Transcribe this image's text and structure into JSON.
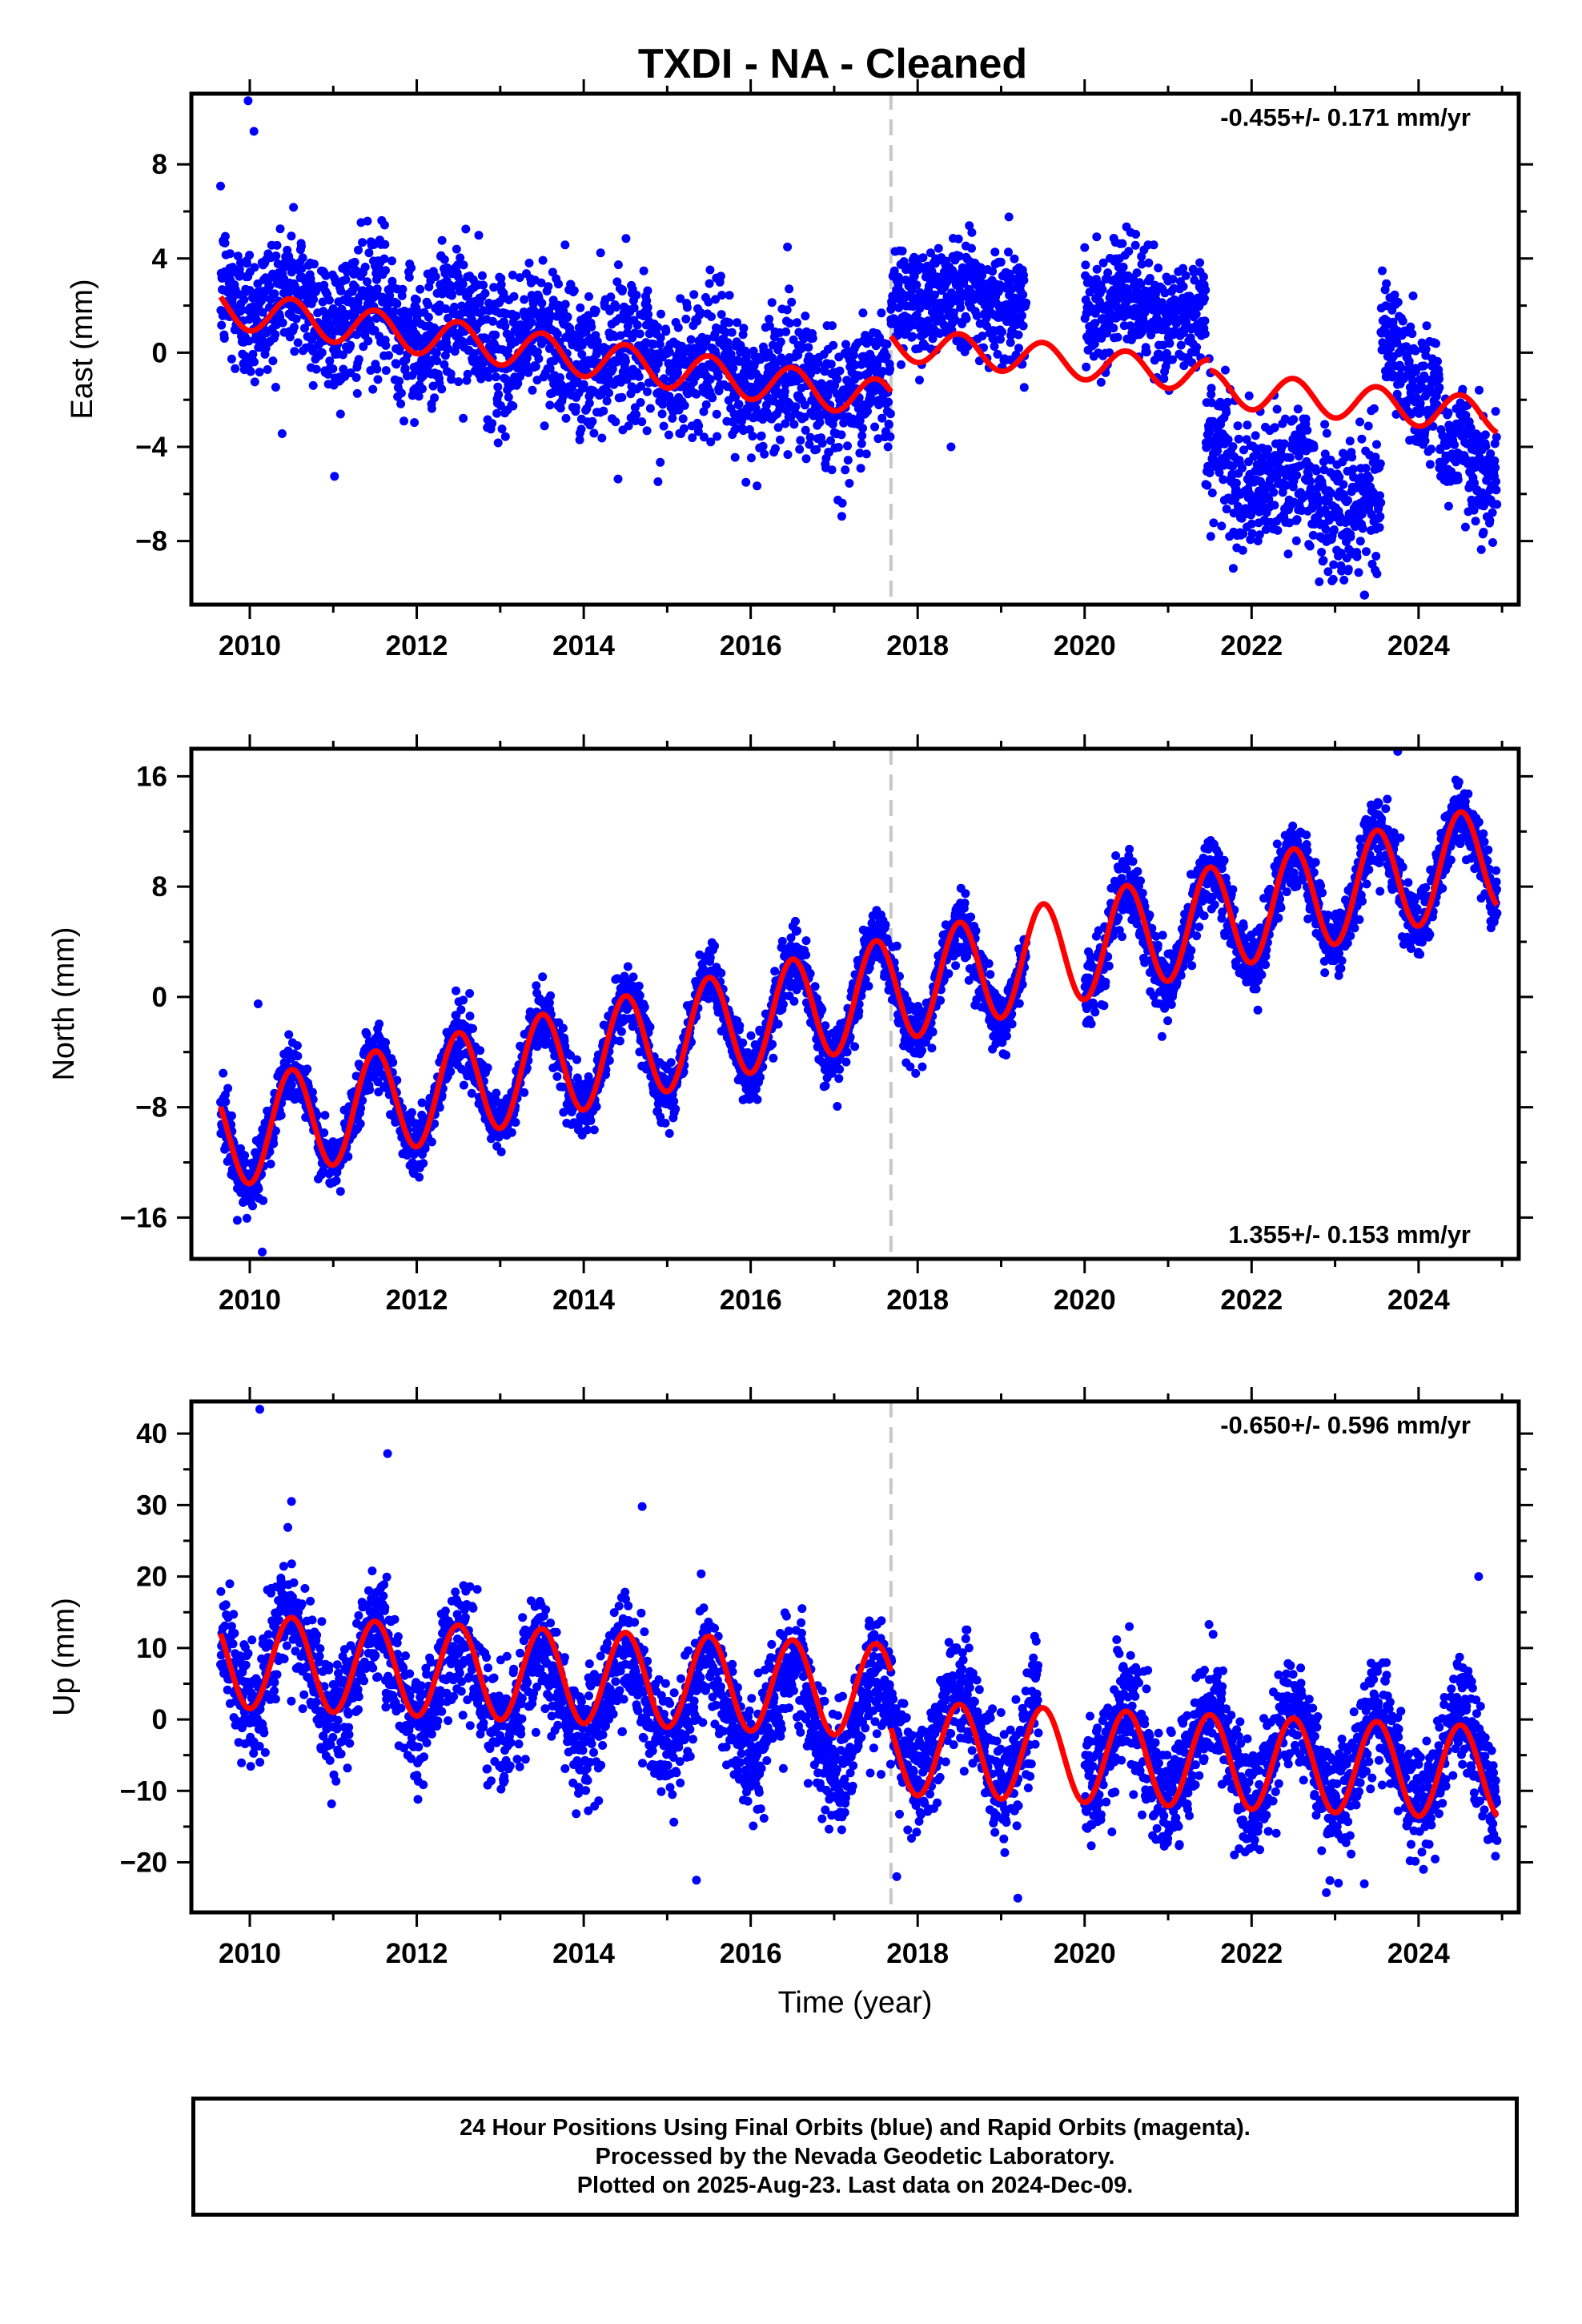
{
  "chart_data": {
    "title": "TXDI  - NA - Cleaned",
    "type": "scatter",
    "xlabel": "Time (year)",
    "xlim": [
      2009.3,
      2025.2
    ],
    "xticks": [
      2010,
      2012,
      2014,
      2016,
      2018,
      2020,
      2022,
      2024
    ],
    "xtick_labels": [
      "2010",
      "2012",
      "2014",
      "2016",
      "2018",
      "2020",
      "2022",
      "2024"
    ],
    "equipment_change_year": 2017.68,
    "series_colors": {
      "observations": "#0000ff",
      "model": "#ff0000",
      "offset_line": "#c8c8c8"
    },
    "panels": [
      {
        "id": "east",
        "ylabel": "East (mm)",
        "ylim": [
          -10.7,
          11.0
        ],
        "yticks": [
          -8,
          -4,
          0,
          4,
          8
        ],
        "ytick_labels": [
          "−8",
          "−4",
          "0",
          "4",
          "8"
        ],
        "rate_label": "-0.455+/- 0.171 mm/yr",
        "rate_position": "top-right",
        "data_segments": [
          {
            "start": 2009.65,
            "end": 2017.68,
            "center_start": 2.5,
            "center_end": -2.0,
            "amplitude": 0.7,
            "scatter": 1.5
          },
          {
            "start": 2017.68,
            "end": 2019.3,
            "center_start": 2.6,
            "center_end": 2.3,
            "amplitude": 0.5,
            "scatter": 1.2
          },
          {
            "start": 2020.0,
            "end": 2021.45,
            "center_start": 2.2,
            "center_end": 1.5,
            "amplitude": 0.5,
            "scatter": 1.2
          },
          {
            "start": 2021.45,
            "end": 2023.55,
            "center_start": -4.5,
            "center_end": -6.8,
            "amplitude": 0.8,
            "scatter": 1.4
          },
          {
            "start": 2023.55,
            "end": 2024.25,
            "center_start": 0.5,
            "center_end": -1.5,
            "amplitude": 0.8,
            "scatter": 1.3
          },
          {
            "start": 2024.25,
            "end": 2024.94,
            "center_start": -4.3,
            "center_end": -5.2,
            "amplitude": 0.8,
            "scatter": 1.3
          }
        ],
        "outliers": [
          [
            2009.98,
            10.7
          ],
          [
            2010.05,
            9.4
          ],
          [
            2018.4,
            -4.0
          ],
          [
            2023.35,
            -10.3
          ]
        ],
        "model_segments": [
          {
            "start": 2009.65,
            "end": 2017.68,
            "center_start": 1.9,
            "center_end": -2.0,
            "amplitude": 0.8
          },
          {
            "start": 2017.68,
            "end": 2021.5,
            "center_start": 0.4,
            "center_end": -1.0,
            "amplitude": 0.7
          },
          {
            "start": 2021.5,
            "end": 2024.94,
            "center_start": -1.5,
            "center_end": -2.7,
            "amplitude": 0.75
          }
        ]
      },
      {
        "id": "north",
        "ylabel": "North (mm)",
        "ylim": [
          -19.0,
          18.0
        ],
        "yticks": [
          -16,
          -8,
          0,
          8,
          16
        ],
        "ytick_labels": [
          "−16",
          "−8",
          "0",
          "8",
          "16"
        ],
        "rate_label": "1.355+/- 0.153 mm/yr",
        "rate_position": "bottom-right",
        "data_segments": [
          {
            "start": 2009.65,
            "end": 2019.3,
            "center_start": -10.2,
            "center_end": 2.5,
            "amplitude": 3.8,
            "scatter": 1.1
          },
          {
            "start": 2020.0,
            "end": 2024.94,
            "center_start": 3.5,
            "center_end": 10.2,
            "amplitude": 3.8,
            "scatter": 1.2
          }
        ],
        "outliers": [
          [
            2010.1,
            -0.5
          ],
          [
            2010.15,
            -18.5
          ],
          [
            2009.85,
            -16.2
          ],
          [
            2023.75,
            17.8
          ]
        ],
        "model_segments": [
          {
            "start": 2009.65,
            "end": 2024.94,
            "center_start": -10.2,
            "center_end": 10.2,
            "amplitude": 3.8
          }
        ]
      },
      {
        "id": "up",
        "ylabel": "Up (mm)",
        "ylim": [
          -27.0,
          44.5
        ],
        "yticks": [
          -20,
          -10,
          0,
          10,
          20,
          30,
          40
        ],
        "ytick_labels": [
          "−20",
          "−10",
          "0",
          "10",
          "20",
          "30",
          "40"
        ],
        "rate_label": "-0.650+/- 0.596 mm/yr",
        "rate_position": "top-right",
        "data_segments": [
          {
            "start": 2009.65,
            "end": 2019.45,
            "center_start": 8.5,
            "center_end": -3.0,
            "amplitude": 6.5,
            "scatter": 4.0
          },
          {
            "start": 2020.0,
            "end": 2024.94,
            "center_start": -4.5,
            "center_end": -6.0,
            "amplitude": 6.5,
            "scatter": 4.0
          }
        ],
        "outliers": [
          [
            2010.12,
            43.4
          ],
          [
            2011.65,
            37.2
          ],
          [
            2010.5,
            30.5
          ],
          [
            2014.7,
            29.8
          ],
          [
            2015.35,
            -22.5
          ],
          [
            2017.75,
            -22.0
          ],
          [
            2019.2,
            -25.0
          ],
          [
            2024.72,
            20.0
          ],
          [
            2023.35,
            -23.0
          ]
        ],
        "model_segments": [
          {
            "start": 2009.65,
            "end": 2017.68,
            "center_start": 8.2,
            "center_end": 4.0,
            "amplitude": 6.5
          },
          {
            "start": 2017.68,
            "end": 2024.94,
            "center_start": -4.0,
            "center_end": -7.5,
            "amplitude": 6.5
          }
        ]
      }
    ]
  },
  "footer": {
    "line1": "24 Hour Positions Using Final Orbits (blue) and Rapid Orbits (magenta).",
    "line2": "Processed by the Nevada Geodetic Laboratory.",
    "line3": "Plotted on 2025-Aug-23. Last data on 2024-Dec-09."
  }
}
